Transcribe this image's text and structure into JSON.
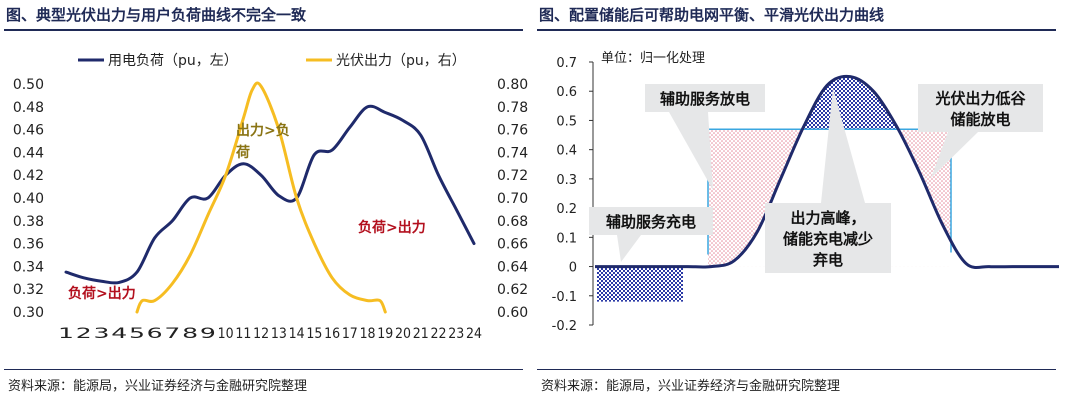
{
  "left": {
    "title": "图、典型光伏出力与用户负荷曲线不完全一致",
    "source": "资料来源：能源局，兴业证券经济与金融研究院整理",
    "legend": [
      {
        "label": "用电负荷（pu，左）",
        "color": "#1f2a6b"
      },
      {
        "label": "光伏出力（pu，右）",
        "color": "#f6bd22"
      }
    ],
    "annotations": [
      {
        "text": "出力>负",
        "color": "#8a7414"
      },
      {
        "text": "荷",
        "color": "#8a7414"
      },
      {
        "text": "负荷>出力",
        "color": "#b3101e"
      },
      {
        "text": "负荷>出力",
        "color": "#b3101e"
      }
    ]
  },
  "right": {
    "title": "图、配置储能后可帮助电网平衡、平滑光伏出力曲线",
    "source": "资料来源：能源局，兴业证券经济与金融研究院整理",
    "unit_label": "单位：归一化处理",
    "callouts": [
      {
        "lines": [
          "辅助服务放电"
        ]
      },
      {
        "lines": [
          "光伏出力低谷",
          "储能放电"
        ]
      },
      {
        "lines": [
          "辅助服务充电"
        ]
      },
      {
        "lines": [
          "出力高峰，",
          "储能充电减少",
          "弃电"
        ]
      }
    ]
  },
  "chart_data": [
    {
      "type": "line",
      "x": [
        1,
        2,
        3,
        4,
        5,
        6,
        7,
        8,
        9,
        10,
        11,
        12,
        13,
        14,
        15,
        16,
        17,
        18,
        19,
        20,
        21,
        22,
        23,
        24
      ],
      "x_ticks": [
        "1",
        "2",
        "3",
        "4",
        "5",
        "6",
        "7",
        "8",
        "9",
        "10",
        "11",
        "12",
        "13",
        "14",
        "15",
        "16",
        "17",
        "18",
        "19",
        "20",
        "21",
        "22",
        "23",
        "24"
      ],
      "y_left_ticks": [
        "0.30",
        "0.32",
        "0.34",
        "0.36",
        "0.38",
        "0.40",
        "0.42",
        "0.44",
        "0.46",
        "0.48",
        "0.50"
      ],
      "y_right_ticks": [
        "0.60",
        "0.62",
        "0.64",
        "0.66",
        "0.68",
        "0.70",
        "0.72",
        "0.74",
        "0.76",
        "0.78",
        "0.80"
      ],
      "ylim_left": [
        0.3,
        0.5
      ],
      "ylim_right": [
        0.6,
        0.8
      ],
      "series": [
        {
          "name": "用电负荷（pu，左）",
          "axis": "left",
          "color": "#1f2a6b",
          "values": [
            0.335,
            0.33,
            0.327,
            0.326,
            0.335,
            0.365,
            0.38,
            0.4,
            0.4,
            0.42,
            0.43,
            0.42,
            0.402,
            0.4,
            0.438,
            0.442,
            0.462,
            0.48,
            0.475,
            0.468,
            0.455,
            0.42,
            0.39,
            0.36
          ]
        },
        {
          "name": "光伏出力（pu，右）",
          "axis": "right",
          "color": "#f6bd22",
          "x": [
            5,
            5.3,
            6,
            7,
            8,
            9,
            10,
            11,
            11.5,
            12,
            13,
            14,
            15,
            16,
            17,
            18,
            18.7,
            19
          ],
          "values": [
            0.6,
            0.61,
            0.61,
            0.625,
            0.65,
            0.685,
            0.72,
            0.77,
            0.795,
            0.798,
            0.76,
            0.7,
            0.66,
            0.63,
            0.615,
            0.61,
            0.61,
            0.6
          ]
        }
      ]
    },
    {
      "type": "area",
      "y_ticks": [
        "-0.2",
        "-0.1",
        "0",
        "0.1",
        "0.2",
        "0.3",
        "0.4",
        "0.5",
        "0.6",
        "0.7"
      ],
      "ylim": [
        -0.2,
        0.7
      ],
      "threshold": 0.47,
      "x": [
        0,
        0.05,
        0.1,
        0.15,
        0.2,
        0.25,
        0.3,
        0.35,
        0.4,
        0.45,
        0.5,
        0.55,
        0.6,
        0.65,
        0.7,
        0.75,
        0.8,
        0.85,
        0.9,
        0.95,
        1.0
      ],
      "values": [
        0,
        0,
        0,
        0,
        0,
        0,
        0.02,
        0.12,
        0.3,
        0.48,
        0.62,
        0.65,
        0.6,
        0.48,
        0.32,
        0.14,
        0.01,
        0,
        0,
        0,
        0
      ]
    }
  ]
}
